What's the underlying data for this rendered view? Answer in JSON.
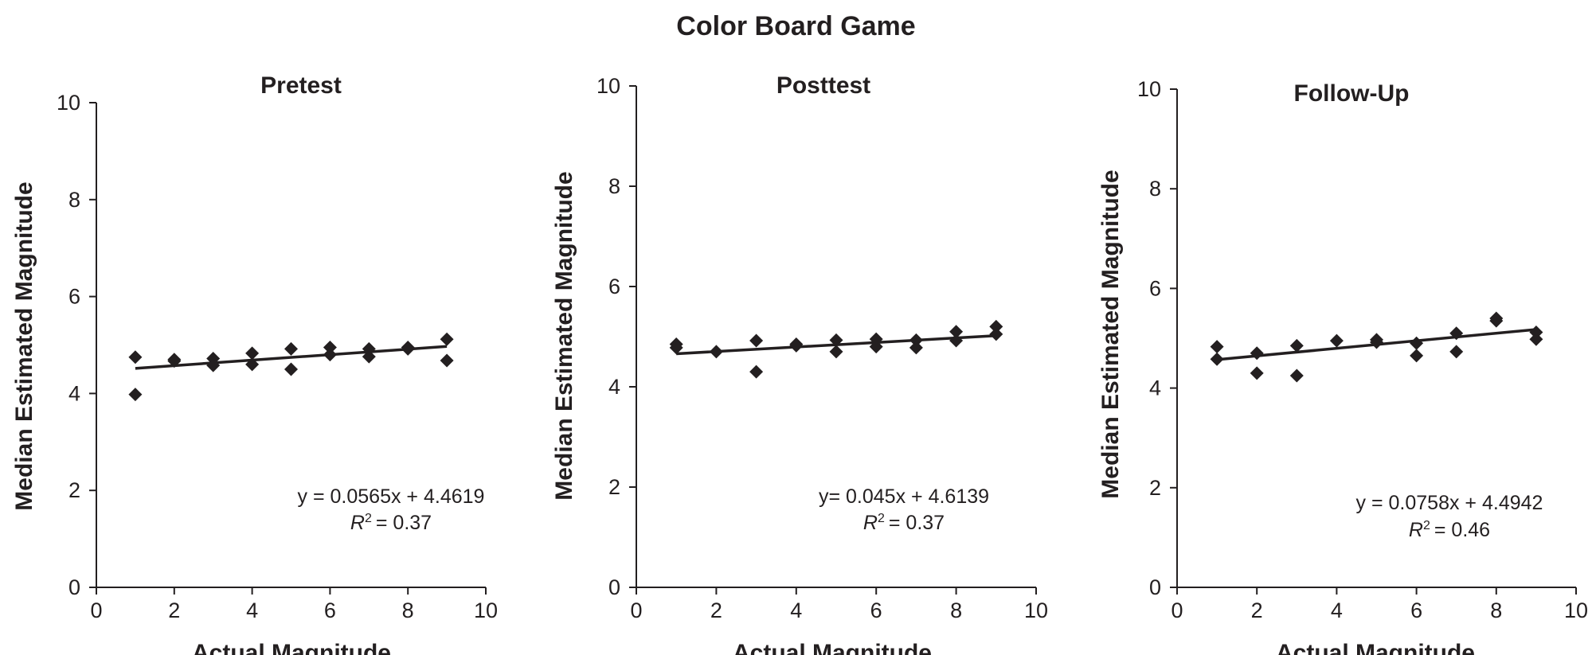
{
  "figure_title": "Color Board Game",
  "chart_data": [
    {
      "type": "scatter",
      "title": "Pretest",
      "xlabel": "Actual Magnitude",
      "ylabel": "Median Estimated Magnitude",
      "xlim": [
        0,
        10
      ],
      "ylim": [
        0,
        10
      ],
      "x_ticks": [
        0,
        2,
        4,
        6,
        8,
        10
      ],
      "y_ticks": [
        0,
        2,
        4,
        6,
        8,
        10
      ],
      "points": [
        [
          1,
          4.75
        ],
        [
          1,
          3.98
        ],
        [
          2,
          4.7
        ],
        [
          2,
          4.67
        ],
        [
          3,
          4.72
        ],
        [
          3,
          4.58
        ],
        [
          4,
          4.83
        ],
        [
          4,
          4.6
        ],
        [
          5,
          4.92
        ],
        [
          5,
          4.5
        ],
        [
          6,
          4.95
        ],
        [
          6,
          4.8
        ],
        [
          7,
          4.92
        ],
        [
          7,
          4.76
        ],
        [
          8,
          4.95
        ],
        [
          8,
          4.92
        ],
        [
          9,
          5.12
        ],
        [
          9,
          4.68
        ]
      ],
      "trendline": {
        "slope": 0.0565,
        "intercept": 4.4619,
        "x_range": [
          1,
          9
        ]
      },
      "equation": "y = 0.0565x + 4.4619",
      "r2_label": "R",
      "r2_value": "= 0.37"
    },
    {
      "type": "scatter",
      "title": "Posttest",
      "xlabel": "Actual Magnitude",
      "ylabel": "Median Estimated Magnitude",
      "xlim": [
        0,
        10
      ],
      "ylim": [
        0,
        10
      ],
      "x_ticks": [
        0,
        2,
        4,
        6,
        8,
        10
      ],
      "y_ticks": [
        0,
        2,
        4,
        6,
        8,
        10
      ],
      "points": [
        [
          1,
          4.85
        ],
        [
          1,
          4.78
        ],
        [
          2,
          4.7
        ],
        [
          3,
          4.92
        ],
        [
          3,
          4.3
        ],
        [
          4,
          4.85
        ],
        [
          4,
          4.82
        ],
        [
          5,
          4.93
        ],
        [
          5,
          4.7
        ],
        [
          6,
          4.95
        ],
        [
          6,
          4.8
        ],
        [
          7,
          4.93
        ],
        [
          7,
          4.78
        ],
        [
          8,
          5.1
        ],
        [
          8,
          4.92
        ],
        [
          9,
          5.2
        ],
        [
          9,
          5.05
        ]
      ],
      "trendline": {
        "slope": 0.045,
        "intercept": 4.6139,
        "x_range": [
          1,
          9
        ]
      },
      "equation": "y= 0.045x + 4.6139",
      "r2_label": "R",
      "r2_value": "= 0.37"
    },
    {
      "type": "scatter",
      "title": "Follow-Up",
      "xlabel": "Actual Magnitude",
      "ylabel": "Median Estimated Magnitude",
      "xlim": [
        0,
        10
      ],
      "ylim": [
        0,
        10
      ],
      "x_ticks": [
        0,
        2,
        4,
        6,
        8,
        10
      ],
      "y_ticks": [
        0,
        2,
        4,
        6,
        8,
        10
      ],
      "points": [
        [
          1,
          4.83
        ],
        [
          1,
          4.58
        ],
        [
          2,
          4.7
        ],
        [
          2,
          4.3
        ],
        [
          3,
          4.85
        ],
        [
          3,
          4.25
        ],
        [
          4,
          4.95
        ],
        [
          5,
          4.97
        ],
        [
          5,
          4.92
        ],
        [
          6,
          4.9
        ],
        [
          6,
          4.65
        ],
        [
          7,
          5.1
        ],
        [
          7,
          4.73
        ],
        [
          8,
          5.4
        ],
        [
          8,
          5.35
        ],
        [
          9,
          5.12
        ],
        [
          9,
          4.98
        ]
      ],
      "trendline": {
        "slope": 0.0758,
        "intercept": 4.4942,
        "x_range": [
          1,
          9
        ]
      },
      "equation": "y = 0.0758x + 4.4942",
      "r2_label": "R",
      "r2_value": "= 0.46"
    }
  ]
}
